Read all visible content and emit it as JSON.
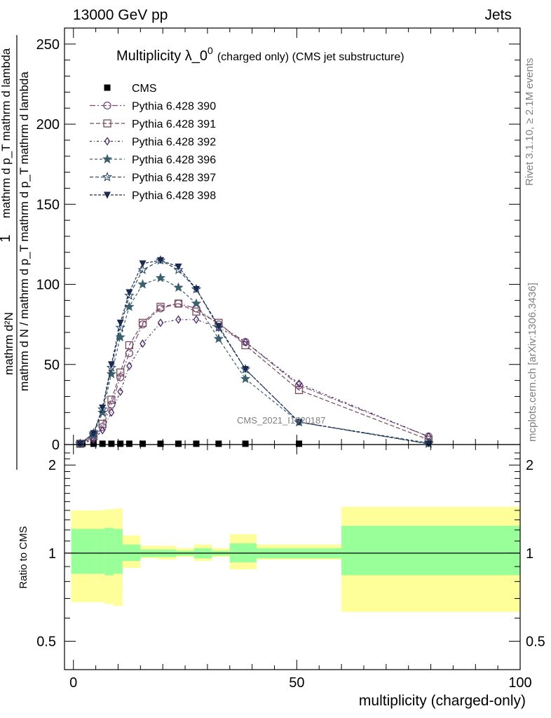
{
  "header": {
    "left": "13000 GeV pp",
    "right": "Jets"
  },
  "side_text": {
    "rivet": "Rivet 3.1.10, ≥ 2.1M events",
    "mcplots": "mcplots.cern.ch [arXiv:1306.3436]"
  },
  "watermark": "CMS_2021_I1920187",
  "colors": {
    "cms": "#000000",
    "p390": "#7a4a78",
    "p391": "#7a4a5a",
    "p392": "#4a2a6a",
    "p396": "#3a6070",
    "p397": "#2a4a6a",
    "p398": "#1a2a50",
    "band_inner": "#99ff99",
    "band_outer": "#ffff99"
  },
  "chart_data": [
    {
      "type": "line",
      "title_main": "Multiplicity λ_0",
      "title_sup": "0",
      "title_sub": "(charged only) (CMS jet substructure)",
      "xlabel": "multiplicity (charged-only)",
      "ylabel": {
        "numerator": "1",
        "denominator": "mathrm d N / mathrm d p_T mathrm d p_T mathrm d lambda",
        "frac_top": "mathrm d²N",
        "frac_bottom": "mathrm d p_T mathrm d lambda"
      },
      "xlim": [
        -2,
        100
      ],
      "ylim": [
        0,
        260
      ],
      "xticks": [
        0,
        50,
        100
      ],
      "yticks": [
        0,
        50,
        100,
        150,
        200,
        250
      ],
      "legend_position": "top-left",
      "series": [
        {
          "name": "CMS",
          "marker": "square",
          "color_key": "cms",
          "x": [
            2,
            4.5,
            6.5,
            8.5,
            10.5,
            12.5,
            15.5,
            19.5,
            23.5,
            27.5,
            32.5,
            38.5,
            50.5
          ],
          "y": [
            0.5,
            0.5,
            0.5,
            0.5,
            0.5,
            0.5,
            0.5,
            0.5,
            0.5,
            0.5,
            0.5,
            0.5,
            0.5
          ]
        },
        {
          "name": "Pythia 6.428 390",
          "marker": "circle-open",
          "color_key": "p390",
          "x": [
            1.5,
            4.5,
            6.5,
            8.5,
            10.5,
            12.5,
            15.5,
            19.5,
            23.5,
            27.5,
            32.5,
            38.5,
            50.5,
            79.5
          ],
          "y": [
            0.5,
            4,
            11,
            25,
            42,
            57,
            75,
            85,
            88,
            85,
            75,
            64,
            37,
            5
          ]
        },
        {
          "name": "Pythia 6.428 391",
          "marker": "square-open",
          "color_key": "p391",
          "x": [
            1.5,
            4.5,
            6.5,
            8.5,
            10.5,
            12.5,
            15.5,
            19.5,
            23.5,
            27.5,
            32.5,
            38.5,
            50.5,
            79.5
          ],
          "y": [
            0.5,
            5,
            13,
            28,
            45,
            62,
            76,
            86,
            88,
            83,
            76,
            62,
            34,
            3
          ]
        },
        {
          "name": "Pythia 6.428 392",
          "marker": "diamond-open",
          "color_key": "p392",
          "x": [
            1.5,
            4.5,
            6.5,
            8.5,
            10.5,
            12.5,
            15.5,
            19.5,
            23.5,
            27.5,
            32.5,
            38.5,
            50.5,
            79.5
          ],
          "y": [
            0.5,
            3,
            9,
            20,
            33,
            49,
            63,
            76,
            78,
            78,
            73,
            64,
            38,
            5
          ]
        },
        {
          "name": "Pythia 6.428 396",
          "marker": "star-filled",
          "color_key": "p396",
          "x": [
            1.5,
            4.5,
            6.5,
            8.5,
            10.5,
            12.5,
            15.5,
            19.5,
            23.5,
            27.5,
            32.5,
            38.5,
            50.5,
            79.5
          ],
          "y": [
            0.5,
            6,
            20,
            44,
            67,
            86,
            100,
            104,
            98,
            88,
            66,
            41,
            14,
            1
          ]
        },
        {
          "name": "Pythia 6.428 397",
          "marker": "star-open",
          "color_key": "p397",
          "x": [
            1.5,
            4.5,
            6.5,
            8.5,
            10.5,
            12.5,
            15.5,
            19.5,
            23.5,
            27.5,
            32.5,
            38.5,
            50.5,
            79.5
          ],
          "y": [
            0.5,
            7,
            22,
            48,
            73,
            93,
            109,
            115,
            109,
            97,
            73,
            47,
            14,
            0.5
          ]
        },
        {
          "name": "Pythia 6.428 398",
          "marker": "triangle-down-filled",
          "color_key": "p398",
          "x": [
            1.5,
            4.5,
            6.5,
            8.5,
            10.5,
            12.5,
            15.5,
            19.5,
            23.5,
            27.5,
            32.5,
            38.5,
            50.5,
            79.5
          ],
          "y": [
            0.5,
            7,
            23,
            50,
            76,
            95,
            113,
            115,
            111,
            97,
            74,
            47,
            14,
            0.5
          ]
        }
      ]
    },
    {
      "type": "area",
      "ylabel": "Ratio to CMS",
      "xlabel": "multiplicity (charged-only)",
      "xlim": [
        -2,
        100
      ],
      "ylim": [
        0.4,
        2.35
      ],
      "log_y": true,
      "xticks": [
        0,
        50,
        100
      ],
      "yticks": [
        0.5,
        1,
        2
      ],
      "reference_line": 1,
      "bands": {
        "bin_edges": [
          -0.5,
          5,
          7,
          9,
          11,
          15,
          19,
          23,
          27,
          31,
          35,
          41,
          60,
          100
        ],
        "inner_low": [
          0.85,
          0.85,
          0.84,
          0.85,
          0.94,
          0.97,
          0.97,
          0.98,
          0.96,
          0.98,
          0.93,
          0.96,
          0.84
        ],
        "inner_high": [
          1.21,
          1.21,
          1.22,
          1.21,
          1.07,
          1.03,
          1.03,
          1.02,
          1.04,
          1.02,
          1.08,
          1.04,
          1.24
        ],
        "outer_low": [
          0.68,
          0.68,
          0.67,
          0.66,
          0.89,
          0.96,
          0.95,
          0.97,
          0.94,
          0.97,
          0.88,
          0.95,
          0.63
        ],
        "outer_high": [
          1.4,
          1.4,
          1.41,
          1.42,
          1.15,
          1.06,
          1.06,
          1.04,
          1.07,
          1.04,
          1.16,
          1.07,
          1.44
        ]
      }
    }
  ]
}
